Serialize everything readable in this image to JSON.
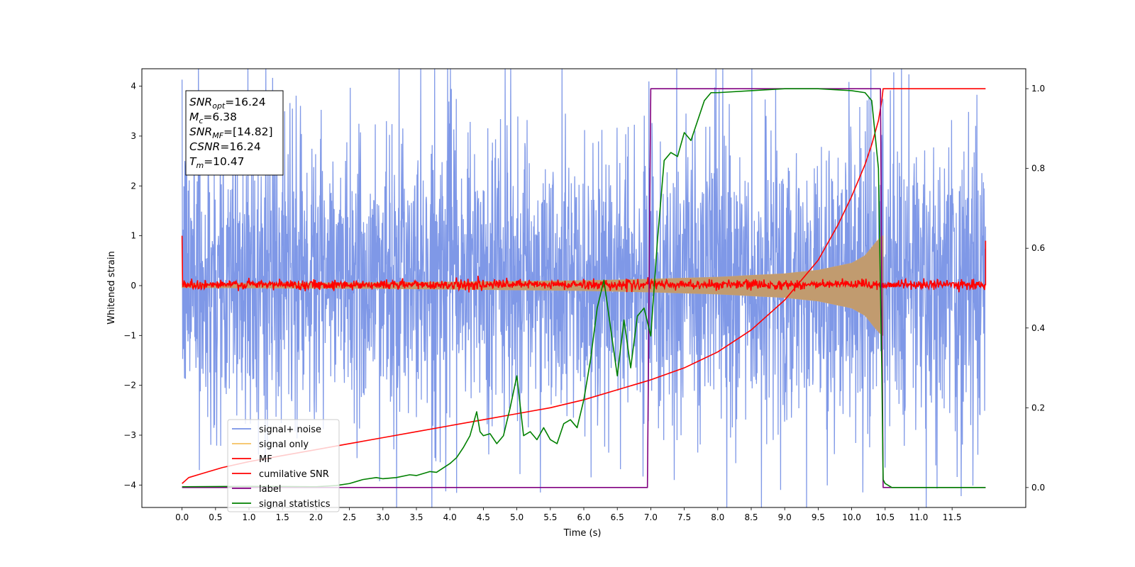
{
  "chart_data": {
    "type": "line",
    "xlabel": "Time (s)",
    "ylabel": "Whitened strain",
    "xlim": [
      -0.6,
      12.6
    ],
    "ylim_left": [
      -4.45,
      4.35
    ],
    "ylim_right": [
      -0.05,
      1.05
    ],
    "x_ticks": [
      0.0,
      0.5,
      1.0,
      1.5,
      2.0,
      2.5,
      3.0,
      3.5,
      4.0,
      4.5,
      5.0,
      5.5,
      6.0,
      6.5,
      7.0,
      7.5,
      8.0,
      8.5,
      9.0,
      9.5,
      10.0,
      10.5,
      11.0,
      11.5
    ],
    "x_tick_labels": [
      "0.0",
      "0.5",
      "1.0",
      "1.5",
      "2.0",
      "2.5",
      "3.0",
      "3.5",
      "4.0",
      "4.5",
      "5.0",
      "5.5",
      "6.0",
      "6.5",
      "7.0",
      "7.5",
      "8.0",
      "8.5",
      "9.0",
      "9.5",
      "10.0",
      "10.5",
      "11.0",
      "11.5"
    ],
    "y_left_ticks": [
      -4,
      -3,
      -2,
      -1,
      0,
      1,
      2,
      3,
      4
    ],
    "y_left_tick_labels": [
      "−4",
      "−3",
      "−2",
      "−1",
      "0",
      "1",
      "2",
      "3",
      "4"
    ],
    "y_right_ticks": [
      0.0,
      0.2,
      0.4,
      0.6,
      0.8,
      1.0
    ],
    "y_right_tick_labels": [
      "0.0",
      "0.2",
      "0.4",
      "0.6",
      "0.8",
      "1.0"
    ],
    "series": [
      {
        "name": "signal+ noise",
        "axis": "left",
        "color": "#7892e6",
        "style": "dense noise band",
        "x_range": [
          0.0,
          12.0
        ],
        "typical_range": [
          -1.9,
          2.2
        ],
        "spikes": [
          [
            0.8,
            3.5
          ],
          [
            1.65,
            3.55
          ],
          [
            3.05,
            3.3
          ],
          [
            5.35,
            -4.15
          ],
          [
            7.35,
            -3.9
          ],
          [
            10.5,
            -3.65
          ]
        ]
      },
      {
        "name": "signal only",
        "axis": "left",
        "color": "#f5c060",
        "style": "chirp envelope",
        "x_range": [
          0.0,
          10.47
        ],
        "envelope": [
          [
            0.0,
            0.04
          ],
          [
            3.0,
            0.06
          ],
          [
            6.0,
            0.1
          ],
          [
            7.0,
            0.13
          ],
          [
            8.0,
            0.17
          ],
          [
            9.0,
            0.24
          ],
          [
            9.5,
            0.31
          ],
          [
            10.0,
            0.45
          ],
          [
            10.2,
            0.6
          ],
          [
            10.35,
            0.85
          ],
          [
            10.45,
            1.0
          ]
        ]
      },
      {
        "name": "MF",
        "axis": "left",
        "color": "#ff0000",
        "style": "noisy line around zero",
        "x_range": [
          0.0,
          12.0
        ],
        "noise_amplitude": 0.07,
        "edges": [
          [
            0.0,
            1.0
          ],
          [
            12.0,
            0.9
          ]
        ]
      },
      {
        "name": "cumilative SNR",
        "axis": "right",
        "color": "#ff0000",
        "x": [
          0.0,
          0.1,
          0.3,
          0.6,
          1.0,
          1.5,
          2.0,
          2.5,
          3.0,
          3.5,
          4.0,
          4.5,
          5.0,
          5.5,
          6.0,
          6.5,
          7.0,
          7.5,
          8.0,
          8.5,
          9.0,
          9.5,
          9.8,
          10.0,
          10.2,
          10.3,
          10.4,
          10.45,
          10.47,
          12.0
        ],
        "y": [
          0.01,
          0.025,
          0.035,
          0.05,
          0.065,
          0.08,
          0.095,
          0.11,
          0.125,
          0.14,
          0.155,
          0.17,
          0.185,
          0.2,
          0.22,
          0.245,
          0.27,
          0.3,
          0.34,
          0.395,
          0.47,
          0.57,
          0.66,
          0.73,
          0.81,
          0.86,
          0.92,
          0.97,
          1.0,
          1.0
        ]
      },
      {
        "name": "label",
        "axis": "right",
        "color": "#800080",
        "x": [
          0.0,
          6.95,
          7.0,
          10.43,
          10.47,
          12.0
        ],
        "y": [
          0.0,
          0.0,
          1.0,
          1.0,
          0.0,
          0.0
        ]
      },
      {
        "name": "signal statistics",
        "axis": "right",
        "color": "#008000",
        "x": [
          0.0,
          1.0,
          2.0,
          2.3,
          2.5,
          2.7,
          2.9,
          3.0,
          3.2,
          3.4,
          3.5,
          3.7,
          3.8,
          4.0,
          4.1,
          4.2,
          4.3,
          4.4,
          4.45,
          4.5,
          4.6,
          4.7,
          4.8,
          4.9,
          5.0,
          5.1,
          5.2,
          5.3,
          5.4,
          5.5,
          5.6,
          5.7,
          5.8,
          5.9,
          6.0,
          6.1,
          6.2,
          6.3,
          6.4,
          6.5,
          6.6,
          6.7,
          6.8,
          6.9,
          7.0,
          7.1,
          7.2,
          7.3,
          7.4,
          7.5,
          7.6,
          7.7,
          7.8,
          7.9,
          8.0,
          8.5,
          9.0,
          9.5,
          10.0,
          10.2,
          10.3,
          10.4,
          10.45,
          10.47,
          10.5,
          10.6,
          12.0
        ],
        "y": [
          0.002,
          0.003,
          0.002,
          0.005,
          0.01,
          0.02,
          0.025,
          0.022,
          0.025,
          0.032,
          0.03,
          0.04,
          0.038,
          0.06,
          0.075,
          0.1,
          0.13,
          0.19,
          0.14,
          0.13,
          0.135,
          0.11,
          0.13,
          0.2,
          0.28,
          0.13,
          0.14,
          0.12,
          0.15,
          0.12,
          0.11,
          0.16,
          0.17,
          0.15,
          0.22,
          0.32,
          0.45,
          0.52,
          0.4,
          0.28,
          0.42,
          0.3,
          0.43,
          0.45,
          0.38,
          0.62,
          0.82,
          0.84,
          0.83,
          0.89,
          0.87,
          0.92,
          0.97,
          0.99,
          0.99,
          0.995,
          1.0,
          1.0,
          0.995,
          0.99,
          0.97,
          0.8,
          0.3,
          0.02,
          0.01,
          0.0,
          0.0
        ]
      }
    ],
    "legend": {
      "position": "lower-left",
      "entries": [
        {
          "name": "signal+ noise",
          "color": "#7892e6"
        },
        {
          "name": "signal only",
          "color": "#f5c060"
        },
        {
          "name": "MF",
          "color": "#ff0000"
        },
        {
          "name": "cumilative SNR",
          "color": "#ff0000"
        },
        {
          "name": "label",
          "color": "#800080"
        },
        {
          "name": "signal statistics",
          "color": "#008000"
        }
      ]
    },
    "annotation": {
      "position": "top-left",
      "lines": [
        {
          "base": "SNR",
          "sub": "opt",
          "rest": "=16.24"
        },
        {
          "base": "M",
          "sub": "c",
          "rest": "=6.38"
        },
        {
          "base": "SNR",
          "sub": "MF",
          "rest": "=[14.82]"
        },
        {
          "base": "CSNR",
          "sub": "",
          "rest": "=16.24"
        },
        {
          "base": "T",
          "sub": "m",
          "rest": "=10.47"
        }
      ]
    }
  }
}
